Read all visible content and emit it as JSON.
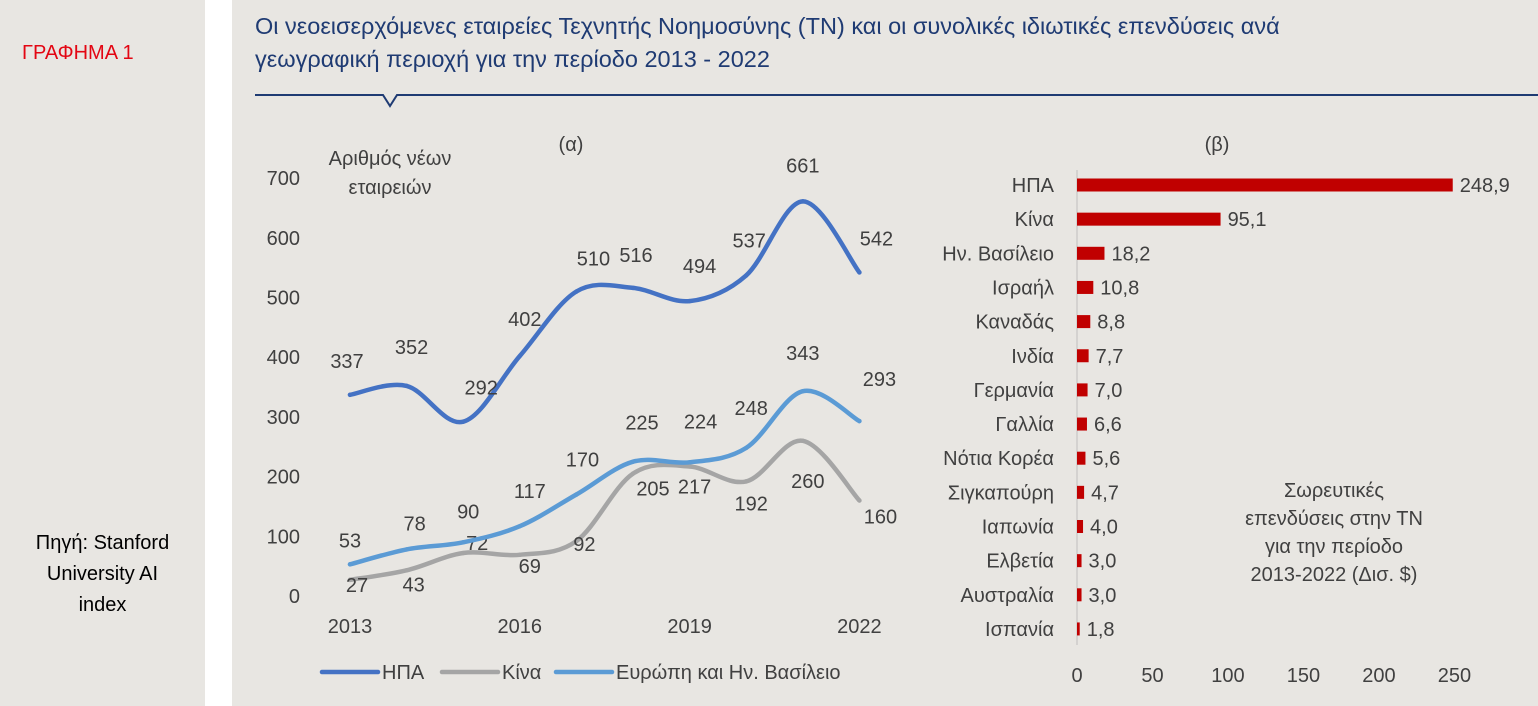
{
  "figure_label": "ΓΡΑΦΗΜΑ 1",
  "source_text": [
    "Πηγή: Stanford",
    "University AI",
    "index"
  ],
  "title_lines": [
    "Οι νεοεισερχόμενες εταιρείες Τεχνητής Νοημοσύνης (ΤΝ) και οι συνολικές ιδιωτικές επενδύσεις ανά",
    "γεωγραφική περιοχή για την περίοδο 2013 - 2022"
  ],
  "colors": {
    "usa": "#4472c4",
    "china": "#a5a5a5",
    "europe": "#5b9bd5",
    "bar": "#c00000",
    "title": "#1f3b73",
    "label_red": "#e30613"
  },
  "chart_data": [
    {
      "type": "line",
      "panel_label": "(α)",
      "ylabel": [
        "Αριθμός νέων",
        "εταιρειών"
      ],
      "x": [
        2013,
        2014,
        2015,
        2016,
        2017,
        2018,
        2019,
        2020,
        2021,
        2022
      ],
      "xticks": [
        "2013",
        "2016",
        "2019",
        "2022"
      ],
      "xtick_values": [
        2013,
        2016,
        2019,
        2022
      ],
      "yticks": [
        "0",
        "100",
        "200",
        "300",
        "400",
        "500",
        "600",
        "700"
      ],
      "ylim": [
        0,
        700
      ],
      "series": [
        {
          "key": "usa",
          "name": "ΗΠΑ",
          "values": [
            337,
            352,
            292,
            402,
            510,
            516,
            494,
            537,
            661,
            542
          ],
          "labels": [
            "337",
            "352",
            "292",
            "402",
            "510",
            "516",
            "494",
            "537",
            "661",
            "542"
          ]
        },
        {
          "key": "china",
          "name": "Κίνα",
          "values": [
            27,
            43,
            72,
            69,
            92,
            205,
            217,
            192,
            260,
            160
          ],
          "labels": [
            "27",
            "43",
            "72",
            "69",
            "92",
            "205",
            "217",
            "192",
            "260",
            "160"
          ]
        },
        {
          "key": "europe",
          "name": "Ευρώπη και Ην. Βασίλειο",
          "values": [
            53,
            78,
            90,
            117,
            170,
            225,
            224,
            248,
            343,
            293
          ],
          "labels": [
            "53",
            "78",
            "90",
            "117",
            "170",
            "225",
            "224",
            "248",
            "343",
            "293"
          ]
        }
      ]
    },
    {
      "type": "bar",
      "orientation": "horizontal",
      "panel_label": "(β)",
      "categories": [
        "ΗΠΑ",
        "Κίνα",
        "Ην. Βασίλειο",
        "Ισραήλ",
        "Καναδάς",
        "Ινδία",
        "Γερμανία",
        "Γαλλία",
        "Νότια Κορέα",
        "Σιγκαπούρη",
        "Ιαπωνία",
        "Ελβετία",
        "Αυστραλία",
        "Ισπανία"
      ],
      "values": [
        248.9,
        95.1,
        18.2,
        10.8,
        8.8,
        7.7,
        7.0,
        6.6,
        5.6,
        4.7,
        4.0,
        3.0,
        3.0,
        1.8
      ],
      "value_labels": [
        "248,9",
        "95,1",
        "18,2",
        "10,8",
        "8,8",
        "7,7",
        "7,0",
        "6,6",
        "5,6",
        "4,7",
        "4,0",
        "3,0",
        "3,0",
        "1,8"
      ],
      "xticks": [
        "0",
        "50",
        "100",
        "150",
        "200",
        "250"
      ],
      "xlim": [
        0,
        250
      ],
      "annotation": [
        "Σωρευτικές",
        "επενδύσεις στην ΤΝ",
        "για την περίοδο",
        "2013-2022 (Δισ. $)"
      ]
    }
  ]
}
